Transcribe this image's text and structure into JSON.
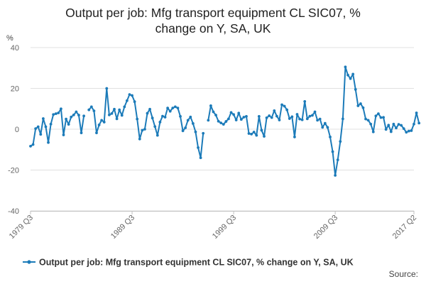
{
  "chart_data": {
    "type": "line",
    "title_line1": "Output per job: Mfg transport equipment CL SIC07, %",
    "title_line2": "change on Y, SA, UK",
    "ylabel": "%",
    "ylim": [
      -40,
      40
    ],
    "yticks": [
      40,
      20,
      0,
      -20,
      -40
    ],
    "xticks": [
      "1979 Q3",
      "1989 Q3",
      "1999 Q3",
      "2009 Q3",
      "2017 Q2"
    ],
    "grid": true,
    "legend_position": "bottom-center",
    "series": [
      {
        "name": "Output per job: Mfg transport equipment CL SIC07, % change on Y, SA, UK",
        "color": "#1c7bb9",
        "x_start": "1979 Q3",
        "x_end": "2017 Q2",
        "segments": [
          [
            -8.3,
            -7.5,
            0.3,
            1.2,
            -2.5,
            5.2,
            1.2,
            -6.5,
            2.5,
            7.2,
            7.6,
            8,
            10,
            -2.8,
            5,
            2.4,
            6,
            7,
            8.5,
            6.9,
            -1.8,
            6.5
          ],
          [
            9.5,
            11,
            9,
            -1.8,
            2.1,
            4.4,
            3.5,
            20,
            7,
            7.7,
            9.8,
            5.1,
            9.5,
            6.8,
            11,
            14,
            17,
            16.5,
            13.5,
            5,
            -4.8,
            -0.5,
            0,
            7.8,
            9.8,
            5.5,
            1.3,
            -3,
            3.5,
            6.4,
            5.9,
            10.4,
            8.8,
            10.4,
            11,
            10.4,
            6.3,
            -0.8,
            0.7,
            4.4,
            6,
            2.8,
            -1.3,
            -9,
            -14,
            -2
          ],
          [
            4.4,
            11.5,
            8.5,
            6.9,
            3.9,
            3.1,
            2.4,
            3.8,
            5.1,
            8.2,
            7.2,
            4.5,
            7.9,
            4.8,
            5.9,
            6.3,
            -2.1,
            -2.4,
            -1.4,
            -3,
            6.3,
            -0.5,
            -3.5,
            5.6,
            6.6,
            5.7,
            9.1,
            6.4,
            4.5,
            12,
            11.3,
            9.5,
            5.2,
            6.1,
            -3.8,
            7.3,
            5,
            4.6,
            13.6,
            5.1,
            6.4,
            6.8,
            8.5,
            4.4,
            5,
            0.9,
            2.9,
            0.9,
            -3.8,
            -11,
            -22.6,
            -15,
            -6,
            5.1,
            30.5,
            26.5,
            24.8,
            27,
            19.5,
            11.5,
            12.5,
            10.5,
            5,
            4.4,
            2.5,
            -1.3,
            6.5,
            7.6,
            5.7,
            5.8,
            -0.1,
            2,
            -1.2,
            2.5,
            0.6,
            2.4,
            1.9,
            0.3,
            -1.5,
            -0.9,
            -0.7,
            2.5,
            8,
            3
          ]
        ]
      }
    ],
    "source_label": "Source:"
  }
}
